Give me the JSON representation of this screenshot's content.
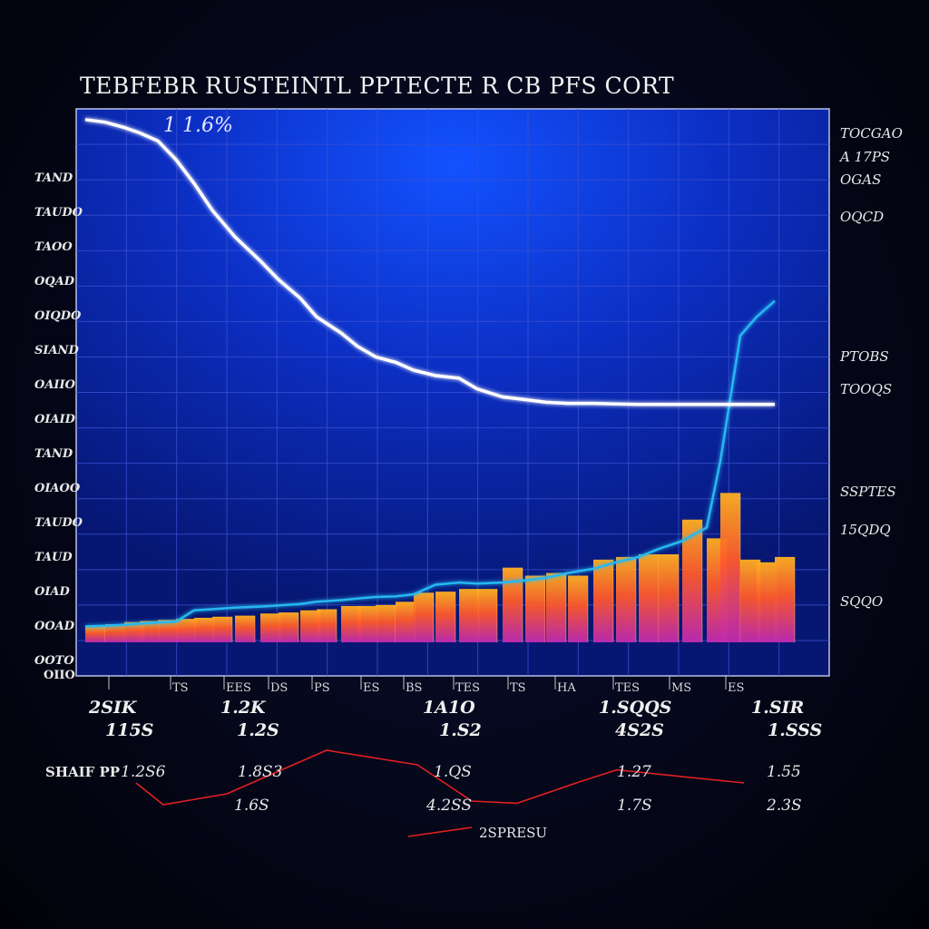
{
  "chart_data": {
    "type": "bar",
    "title": "TEBFEBR RUSTEINTL PPTECTE R CB PFS CORT",
    "title_annotation": "1 1.6%",
    "colors": {
      "panel_top": "#0b3df0",
      "panel_bottom": "#0a1c8a",
      "grid": "#3a4fd0",
      "bar_top": "#ffb020",
      "bar_mid": "#ff5a2a",
      "bar_bottom": "#c02a9a",
      "line_white": "#ffffff",
      "line_cyan": "#28b8f0",
      "line_red": "#e02020"
    },
    "y_ticks_left": [
      "TAND",
      "TAUDO",
      "TAOO",
      "OQAD",
      "OIQDO",
      "SIAND",
      "OAIIO",
      "OIAID",
      "TAND",
      "OIAOO",
      "TAUDO",
      "TAUD",
      "OIAD",
      "OOAD",
      "OOTO"
    ],
    "y_ticks_right": [
      "TOCGAO",
      "A 17PS",
      "OGAS",
      "OQCD",
      "PTOBS",
      "TOOQS",
      "SSPTES",
      "15QDQ",
      "SQQO"
    ],
    "x_ticks": [
      "",
      "TS",
      "EES",
      "DS",
      "PS",
      "ES",
      "BS",
      "TES",
      "TS",
      "HA",
      "TES",
      "MS",
      "ES"
    ],
    "group_labels_top": [
      "2SIK",
      "1.2K",
      "1A1O",
      "1.SQQS",
      "1.SIR"
    ],
    "group_labels_bottom": [
      "115S",
      "1.2S",
      "1.S2",
      "4S2S",
      "1.SSS"
    ],
    "x": [
      90,
      112,
      133,
      150,
      170,
      190,
      210,
      230,
      255,
      283,
      303,
      327,
      345,
      372,
      390,
      410,
      432,
      452,
      476,
      502,
      522,
      550,
      575,
      598,
      622,
      650,
      675,
      700,
      722,
      748,
      775,
      790,
      812,
      830,
      850
    ],
    "series": [
      {
        "values": [
          30,
          34,
          38,
          40,
          42,
          44,
          46,
          48,
          50,
          54,
          56,
          60,
          62,
          68,
          68,
          70,
          76,
          93,
          95,
          100,
          100,
          140,
          125,
          130,
          125,
          155,
          160,
          165,
          165,
          230,
          195,
          280,
          155,
          150,
          160
        ]
      },
      {
        "values": [
          980,
          975,
          965,
          955,
          940,
          905,
          860,
          810,
          760,
          715,
          680,
          645,
          610,
          580,
          555,
          535,
          525,
          510,
          500,
          495,
          475,
          460,
          455,
          450,
          448,
          448,
          447,
          446,
          446,
          446,
          446,
          446,
          446,
          446,
          446
        ]
      },
      {
        "values": [
          30,
          31,
          33,
          35,
          37,
          39,
          60,
          62,
          65,
          67,
          69,
          72,
          76,
          79,
          82,
          85,
          86,
          90,
          108,
          112,
          110,
          112,
          116,
          121,
          130,
          138,
          150,
          160,
          175,
          190,
          215,
          340,
          575,
          610,
          640
        ]
      }
    ],
    "ylim": [
      0,
      1000
    ],
    "xlim": [
      80,
      910
    ],
    "legend_label": "SHAIF PP",
    "lower_values_top": [
      "1.2S6",
      "1.8S3",
      "1.QS",
      "1.27",
      "1.55"
    ],
    "lower_values_bottom": [
      "1.6S",
      "4.2SS",
      "1.7S",
      "2.3S"
    ],
    "lower_caption": "2SPRESU",
    "lower_series": [
      40,
      10,
      25,
      85,
      65,
      15,
      12,
      42,
      58,
      40
    ],
    "lower_ylim": [
      0,
      100
    ]
  }
}
